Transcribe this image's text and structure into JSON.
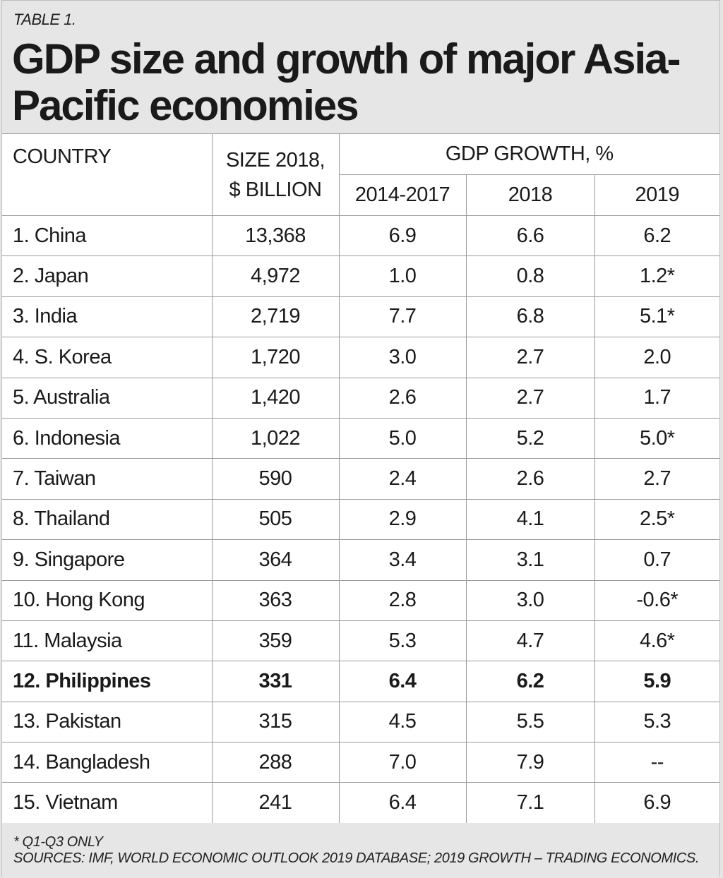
{
  "label": "TABLE 1.",
  "title": "GDP size and growth of major Asia-Pacific economies",
  "headers": {
    "country": "COUNTRY",
    "size_line1": "SIZE 2018,",
    "size_line2": "$ BILLION",
    "growth": "GDP GROWTH, %",
    "years": [
      "2014-2017",
      "2018",
      "2019"
    ]
  },
  "rows": [
    {
      "country": "1. China",
      "size": "13,368",
      "g1417": "6.9",
      "g2018": "6.6",
      "g2019": "6.2"
    },
    {
      "country": "2. Japan",
      "size": "4,972",
      "g1417": "1.0",
      "g2018": "0.8",
      "g2019": "1.2*"
    },
    {
      "country": "3. India",
      "size": "2,719",
      "g1417": "7.7",
      "g2018": "6.8",
      "g2019": "5.1*"
    },
    {
      "country": "4. S. Korea",
      "size": "1,720",
      "g1417": "3.0",
      "g2018": "2.7",
      "g2019": "2.0"
    },
    {
      "country": "5. Australia",
      "size": "1,420",
      "g1417": "2.6",
      "g2018": "2.7",
      "g2019": "1.7"
    },
    {
      "country": "6. Indonesia",
      "size": "1,022",
      "g1417": "5.0",
      "g2018": "5.2",
      "g2019": "5.0*"
    },
    {
      "country": "7. Taiwan",
      "size": "590",
      "g1417": "2.4",
      "g2018": "2.6",
      "g2019": "2.7"
    },
    {
      "country": "8. Thailand",
      "size": "505",
      "g1417": "2.9",
      "g2018": "4.1",
      "g2019": "2.5*"
    },
    {
      "country": "9. Singapore",
      "size": "364",
      "g1417": "3.4",
      "g2018": "3.1",
      "g2019": "0.7"
    },
    {
      "country": "10. Hong Kong",
      "size": "363",
      "g1417": "2.8",
      "g2018": "3.0",
      "g2019": "-0.6*"
    },
    {
      "country": "11. Malaysia",
      "size": "359",
      "g1417": "5.3",
      "g2018": "4.7",
      "g2019": "4.6*"
    },
    {
      "country": "12. Philippines",
      "size": "331",
      "g1417": "6.4",
      "g2018": "6.2",
      "g2019": "5.9",
      "highlight": true
    },
    {
      "country": "13. Pakistan",
      "size": "315",
      "g1417": "4.5",
      "g2018": "5.5",
      "g2019": "5.3"
    },
    {
      "country": "14. Bangladesh",
      "size": "288",
      "g1417": "7.0",
      "g2018": "7.9",
      "g2019": "--"
    },
    {
      "country": "15. Vietnam",
      "size": "241",
      "g1417": "6.4",
      "g2018": "7.1",
      "g2019": "6.9"
    }
  ],
  "footnote": "* Q1-Q3 ONLY",
  "sources": "SOURCES: IMF, WORLD ECONOMIC OUTLOOK 2019 DATABASE; 2019 GROWTH – TRADING ECONOMICS.",
  "colors": {
    "header_bg": "#e6e6e6",
    "table_bg": "#ffffff",
    "border": "#9a9a9a"
  }
}
